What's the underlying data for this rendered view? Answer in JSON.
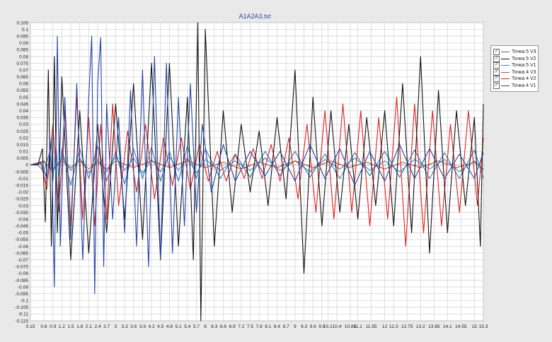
{
  "chart_data": {
    "type": "line",
    "title": "A1A2A3.txt",
    "xlabel": "",
    "ylabel": "",
    "xlim": [
      0.15,
      15.3
    ],
    "ylim": [
      -0.115,
      0.105
    ],
    "grid": true,
    "legend_position": "right",
    "x_ticks": [
      0.15,
      0.6,
      0.9,
      1.2,
      1.5,
      1.8,
      2.1,
      2.4,
      2.7,
      3,
      3.3,
      3.6,
      3.9,
      4.2,
      4.5,
      4.8,
      5.1,
      5.4,
      5.7,
      6,
      6.3,
      6.6,
      6.9,
      7.2,
      7.5,
      7.8,
      8.1,
      8.4,
      8.7,
      9,
      9.3,
      9.6,
      9.9,
      10.1,
      10.4,
      10.85,
      11.1,
      11.55,
      12,
      12.3,
      12.75,
      13.2,
      13.65,
      14.1,
      14.55,
      15,
      15.3
    ],
    "x_tick_labels": [
      "0.15",
      "0.6",
      "0.9",
      "1.2",
      "1.5",
      "1.8",
      "2.1",
      "2.4",
      "2.7",
      "3",
      "3.3",
      "3.6",
      "3.9",
      "4.2",
      "4.5",
      "4.8",
      "5.1",
      "5.4",
      "5.7",
      "6",
      "6.3",
      "6.6",
      "6.9",
      "7.2",
      "7.5",
      "7.8",
      "8.1",
      "8.4",
      "8.7",
      "9",
      "9.3",
      "9.6",
      "9.9",
      "10.1",
      "10.4",
      "10.85",
      "11.1",
      "11.55",
      "12",
      "12.3",
      "12.75",
      "13.2",
      "13.65",
      "14.1",
      "14.55",
      "15",
      "15.3"
    ],
    "y_tick_labels": [
      "0.105",
      "0.1",
      "0.095",
      "0.09",
      "0.085",
      "0.08",
      "0.075",
      "0.07",
      "0.065",
      "0.06",
      "0.055",
      "0.05",
      "0.045",
      "0.04",
      "0.035",
      "0.03",
      "0.025",
      "0.02",
      "0.015",
      "0.01",
      "0.005",
      "0",
      "-0.005",
      "-0.01",
      "-0.015",
      "-0.02",
      "-0.025",
      "-0.03",
      "-0.035",
      "-0.04",
      "-0.045",
      "-0.05",
      "-0.055",
      "-0.06",
      "-0.065",
      "-0.07",
      "-0.075",
      "-0.08",
      "-0.085",
      "-0.09",
      "-0.095",
      "-0.1",
      "-0.105",
      "-0.11",
      "-0.115"
    ],
    "series": [
      {
        "name": "Точка 5 V3",
        "color": "#2a7abf",
        "x": [
          0.15,
          0.4,
          0.6,
          0.8,
          0.9,
          1.0,
          1.1,
          1.2,
          1.5,
          1.8,
          2.1,
          2.4,
          2.7,
          3.0,
          3.3,
          3.6,
          3.9,
          4.2,
          4.5,
          4.8,
          5.1,
          5.4,
          5.7,
          6.0,
          6.5,
          7.0,
          7.5,
          8.0,
          8.5,
          9.0,
          9.5,
          10.0,
          10.5,
          11.0,
          11.5,
          12.0,
          12.5,
          13.0,
          13.5,
          14.0,
          14.5,
          15.0,
          15.3
        ],
        "y": [
          0,
          0,
          -0.005,
          0.01,
          -0.012,
          0.014,
          -0.01,
          0.012,
          -0.015,
          0.012,
          -0.01,
          0.014,
          -0.012,
          0.01,
          -0.014,
          0.012,
          -0.01,
          0.013,
          -0.012,
          0.01,
          -0.012,
          0.014,
          -0.01,
          0.012,
          -0.01,
          0.008,
          -0.009,
          0.01,
          -0.008,
          0.01,
          -0.009,
          0.008,
          -0.01,
          0.009,
          -0.008,
          0.01,
          -0.009,
          0.011,
          -0.01,
          0.009,
          -0.01,
          0.011,
          -0.01
        ]
      },
      {
        "name": "Точка 5 V2",
        "color": "#111111",
        "x": [
          0.15,
          0.4,
          0.55,
          0.65,
          0.75,
          0.85,
          0.95,
          1.05,
          1.2,
          1.5,
          1.8,
          2.1,
          2.4,
          2.7,
          3.0,
          3.3,
          3.6,
          3.9,
          4.2,
          4.5,
          4.8,
          5.1,
          5.4,
          5.6,
          5.75,
          5.85,
          6.0,
          6.3,
          6.6,
          6.9,
          7.2,
          7.5,
          7.8,
          8.1,
          8.4,
          8.7,
          9.0,
          9.3,
          9.6,
          9.9,
          10.2,
          10.5,
          10.8,
          11.1,
          11.4,
          11.7,
          12.0,
          12.3,
          12.6,
          12.9,
          13.2,
          13.5,
          13.8,
          14.1,
          14.4,
          14.7,
          15.0,
          15.2,
          15.3
        ],
        "y": [
          0,
          0,
          0.012,
          -0.042,
          0.07,
          -0.06,
          0.08,
          -0.05,
          0.065,
          -0.07,
          0.04,
          -0.065,
          0.03,
          -0.05,
          0.045,
          -0.04,
          0.06,
          -0.055,
          0.075,
          -0.07,
          0.075,
          -0.06,
          0.05,
          -0.07,
          0.105,
          -0.115,
          0.1,
          -0.06,
          0.04,
          -0.035,
          0.03,
          -0.02,
          0.025,
          -0.03,
          0.035,
          -0.025,
          0.07,
          -0.08,
          0.05,
          -0.045,
          0.04,
          -0.035,
          0.03,
          -0.04,
          0.035,
          -0.03,
          0.04,
          -0.045,
          0.06,
          -0.05,
          0.08,
          -0.065,
          0.055,
          -0.05,
          0.04,
          -0.03,
          0.035,
          -0.06,
          0.045
        ]
      },
      {
        "name": "Точка 5 V1",
        "color": "#2f8ad0",
        "x": [
          0.15,
          0.6,
          0.9,
          1.2,
          1.5,
          1.8,
          2.1,
          2.4,
          2.7,
          3.0,
          3.3,
          3.6,
          3.9,
          4.2,
          4.5,
          4.8,
          5.1,
          5.4,
          5.7,
          6.0,
          6.5,
          7.0,
          7.5,
          8.0,
          8.5,
          9.0,
          9.5,
          10.0,
          10.5,
          11.0,
          11.5,
          12.0,
          12.5,
          13.0,
          13.5,
          14.0,
          14.5,
          15.0,
          15.3
        ],
        "y": [
          0,
          0.003,
          -0.005,
          0.006,
          -0.004,
          0.005,
          -0.006,
          0.004,
          -0.005,
          0.006,
          -0.004,
          0.005,
          -0.006,
          0.004,
          -0.005,
          0.006,
          -0.004,
          0.005,
          -0.006,
          0.004,
          -0.004,
          0.003,
          -0.004,
          0.005,
          -0.004,
          0.003,
          -0.005,
          0.004,
          -0.003,
          0.005,
          -0.004,
          0.003,
          -0.005,
          0.004,
          -0.003,
          0.004,
          -0.005,
          0.003,
          -0.004
        ]
      },
      {
        "name": "Точка 4 V3",
        "color": "#c8542a",
        "x": [
          0.15,
          0.6,
          0.9,
          1.2,
          1.5,
          1.8,
          2.1,
          2.4,
          2.7,
          3.0,
          3.6,
          4.2,
          4.8,
          5.4,
          6.0,
          6.6,
          7.2,
          7.8,
          8.4,
          9.0,
          9.6,
          10.2,
          10.8,
          11.4,
          12.0,
          12.6,
          13.2,
          13.8,
          14.4,
          15.0,
          15.3
        ],
        "y": [
          0,
          0.002,
          -0.003,
          0.003,
          -0.002,
          0.003,
          -0.003,
          0.002,
          -0.003,
          0.003,
          -0.002,
          0.003,
          -0.002,
          0.003,
          -0.002,
          0.002,
          -0.003,
          0.002,
          -0.002,
          0.003,
          -0.002,
          0.003,
          -0.002,
          0.002,
          -0.003,
          0.002,
          -0.002,
          0.003,
          -0.002,
          0.002,
          -0.003
        ]
      },
      {
        "name": "Точка 4 V2",
        "color": "#e02020",
        "x": [
          0.15,
          0.5,
          0.7,
          0.9,
          1.1,
          1.3,
          1.5,
          1.7,
          1.9,
          2.1,
          2.3,
          2.5,
          2.7,
          2.9,
          3.1,
          3.4,
          3.7,
          4.0,
          4.3,
          4.6,
          4.9,
          5.2,
          5.5,
          5.8,
          6.1,
          6.4,
          6.7,
          7.0,
          7.3,
          7.6,
          7.9,
          8.2,
          8.5,
          8.8,
          9.1,
          9.4,
          9.7,
          10.0,
          10.3,
          10.6,
          10.9,
          11.2,
          11.5,
          11.8,
          12.1,
          12.4,
          12.7,
          13.0,
          13.3,
          13.6,
          13.9,
          14.2,
          14.5,
          14.8,
          15.1,
          15.3
        ],
        "y": [
          0,
          0.002,
          -0.018,
          0.03,
          -0.035,
          0.04,
          -0.045,
          0.05,
          -0.04,
          0.035,
          -0.045,
          0.03,
          -0.04,
          0.045,
          -0.03,
          0.025,
          -0.02,
          0.03,
          -0.025,
          0.02,
          -0.015,
          0.02,
          -0.018,
          0.015,
          -0.012,
          0.01,
          -0.012,
          0.008,
          -0.01,
          0.012,
          -0.01,
          0.015,
          -0.012,
          0.02,
          -0.025,
          0.03,
          -0.035,
          0.04,
          -0.04,
          0.045,
          -0.035,
          0.04,
          -0.045,
          0.035,
          -0.04,
          0.05,
          -0.06,
          0.045,
          -0.05,
          0.04,
          -0.045,
          0.03,
          -0.035,
          0.04,
          -0.03,
          0.02
        ]
      },
      {
        "name": "Точка 4 V1",
        "color": "#2244a8",
        "x": [
          0.15,
          0.5,
          0.7,
          0.85,
          0.95,
          1.05,
          1.15,
          1.3,
          1.5,
          1.7,
          1.9,
          2.1,
          2.2,
          2.3,
          2.4,
          2.5,
          2.6,
          2.7,
          2.9,
          3.1,
          3.3,
          3.5,
          3.7,
          3.9,
          4.1,
          4.3,
          4.5,
          4.7,
          4.9,
          5.1,
          5.3,
          5.5,
          5.7,
          5.9,
          6.2,
          6.6,
          7.0,
          7.5,
          8.0,
          8.5,
          9.0,
          9.5,
          10.0,
          10.5,
          11.0,
          11.5,
          12.0,
          12.5,
          13.0,
          13.5,
          14.0,
          14.5,
          15.0,
          15.3
        ],
        "y": [
          0,
          0.001,
          -0.01,
          0.02,
          -0.09,
          0.095,
          -0.06,
          0.05,
          -0.055,
          0.06,
          -0.07,
          0.05,
          0.095,
          -0.095,
          0.06,
          0.094,
          -0.075,
          0.045,
          -0.04,
          0.035,
          -0.05,
          0.055,
          -0.06,
          0.07,
          -0.075,
          0.08,
          -0.07,
          0.075,
          -0.065,
          0.05,
          -0.045,
          0.06,
          -0.035,
          0.03,
          -0.02,
          0.015,
          -0.012,
          0.01,
          -0.008,
          0.01,
          -0.012,
          0.015,
          -0.01,
          0.012,
          -0.015,
          0.01,
          -0.012,
          0.015,
          -0.01,
          0.012,
          -0.01,
          0.008,
          -0.01,
          0.009
        ]
      }
    ]
  }
}
